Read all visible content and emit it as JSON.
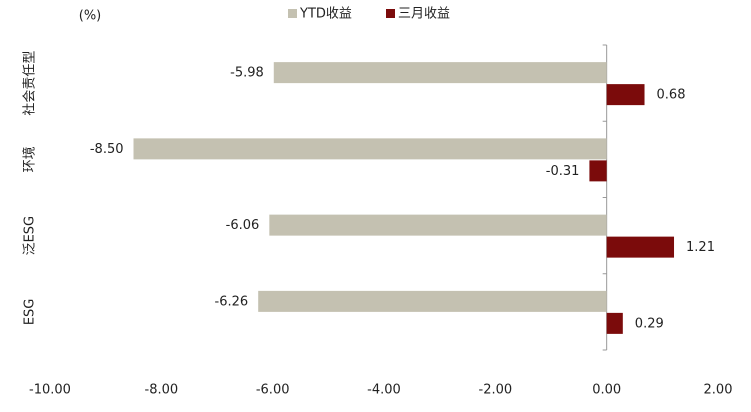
{
  "chart_data": {
    "type": "hbar",
    "unit": "(%)",
    "categories": [
      "社会责任型",
      "环境",
      "泛ESG",
      "ESG"
    ],
    "series": [
      {
        "name": "YTD收益",
        "color": "#c4c1b1",
        "values": [
          -5.98,
          -8.5,
          -6.06,
          -6.26
        ],
        "value_labels": [
          "-5.98",
          "-8.50",
          "-6.06",
          "-6.26"
        ]
      },
      {
        "name": "三月收益",
        "color": "#7b0b0b",
        "values": [
          0.68,
          -0.31,
          1.21,
          0.29
        ],
        "value_labels": [
          "0.68",
          "-0.31",
          "1.21",
          "0.29"
        ]
      }
    ],
    "xlim": [
      -10,
      2
    ],
    "xticks": [
      {
        "value": -10,
        "label": "-10.00"
      },
      {
        "value": -8,
        "label": "-8.00"
      },
      {
        "value": -6,
        "label": "-6.00"
      },
      {
        "value": -4,
        "label": "-4.00"
      },
      {
        "value": -2,
        "label": "-2.00"
      },
      {
        "value": 0,
        "label": "0.00"
      },
      {
        "value": 2,
        "label": "2.00"
      }
    ]
  }
}
